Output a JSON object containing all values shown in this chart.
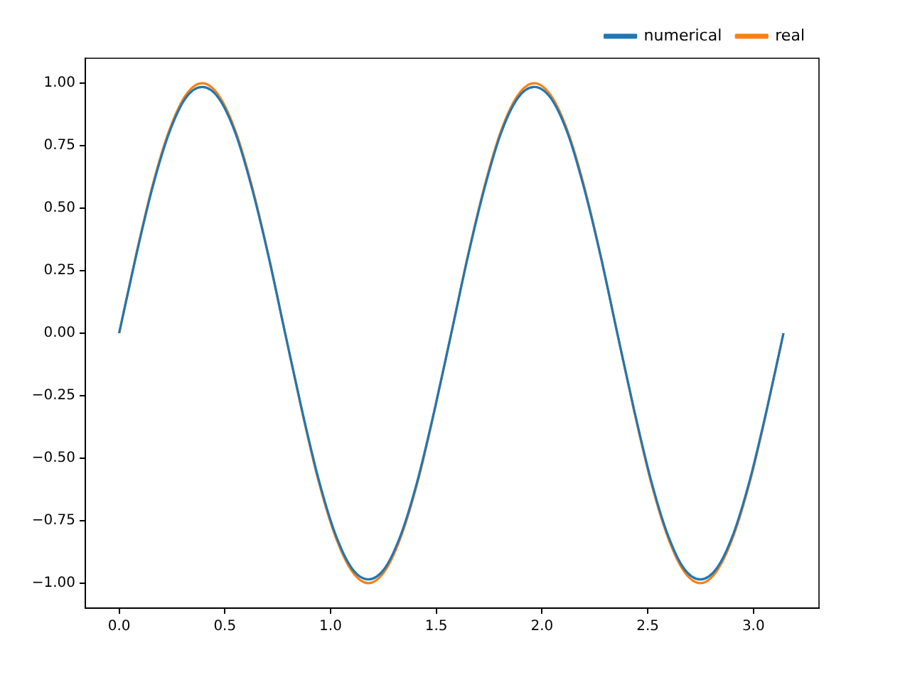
{
  "chart_data": {
    "type": "line",
    "x": [
      0,
      0.079,
      0.157,
      0.236,
      0.314,
      0.393,
      0.471,
      0.55,
      0.628,
      0.707,
      0.785,
      0.864,
      0.942,
      1.021,
      1.1,
      1.178,
      1.257,
      1.335,
      1.414,
      1.492,
      1.571,
      1.649,
      1.728,
      1.806,
      1.885,
      1.963,
      2.042,
      2.121,
      2.199,
      2.278,
      2.356,
      2.435,
      2.513,
      2.592,
      2.67,
      2.749,
      2.827,
      2.906,
      2.985,
      3.063,
      3.142
    ],
    "series": [
      {
        "name": "numerical",
        "color": "#1f77b4",
        "values": [
          0,
          0.305,
          0.58,
          0.8,
          0.94,
          0.985,
          0.94,
          0.8,
          0.58,
          0.305,
          0,
          -0.305,
          -0.58,
          -0.8,
          -0.94,
          -0.985,
          -0.94,
          -0.8,
          -0.58,
          -0.305,
          0,
          0.305,
          0.58,
          0.8,
          0.94,
          0.985,
          0.94,
          0.8,
          0.58,
          0.305,
          0,
          -0.305,
          -0.58,
          -0.8,
          -0.94,
          -0.985,
          -0.94,
          -0.8,
          -0.58,
          -0.305,
          0
        ]
      },
      {
        "name": "real",
        "color": "#ff7f0e",
        "values": [
          0,
          0.309,
          0.588,
          0.809,
          0.951,
          1,
          0.951,
          0.809,
          0.588,
          0.309,
          0,
          -0.309,
          -0.588,
          -0.809,
          -0.951,
          -1,
          -0.951,
          -0.809,
          -0.588,
          -0.309,
          0,
          0.309,
          0.588,
          0.809,
          0.951,
          1,
          0.951,
          0.809,
          0.588,
          0.309,
          0,
          -0.309,
          -0.588,
          -0.809,
          -0.951,
          -1,
          -0.951,
          -0.809,
          -0.588,
          -0.309,
          0
        ]
      }
    ],
    "xlim": [
      -0.16,
      3.31
    ],
    "xticks": [
      {
        "value": 0,
        "label": "0.0"
      },
      0.5,
      {
        "value": 1,
        "label": "1.0"
      },
      1.5,
      {
        "value": 2,
        "label": "2.0"
      },
      2.5,
      {
        "value": 3,
        "label": "3.0"
      }
    ],
    "ylim": [
      -1.1,
      1.1
    ],
    "yticks": [
      {
        "value": -1,
        "label": "−1.00"
      },
      {
        "value": -0.75,
        "label": "−0.75"
      },
      {
        "value": -0.5,
        "label": "−0.50"
      },
      {
        "value": -0.25,
        "label": "−0.25"
      },
      {
        "value": 0,
        "label": "0.00"
      },
      {
        "value": 0.25,
        "label": "0.25"
      },
      {
        "value": 0.5,
        "label": "0.50"
      },
      {
        "value": 0.75,
        "label": "0.75"
      },
      {
        "value": 1,
        "label": "1.00"
      }
    ],
    "grid": false,
    "legend": "top right",
    "marker": "none",
    "line_style": "solid"
  }
}
